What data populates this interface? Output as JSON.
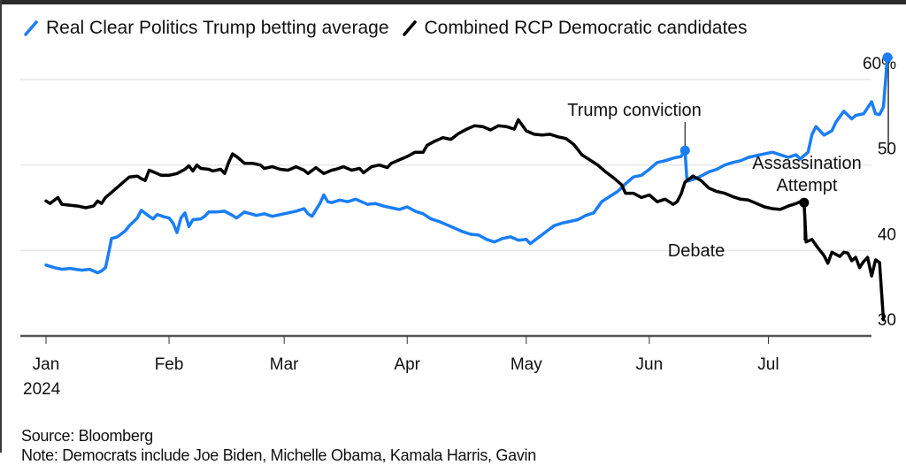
{
  "chart_data": {
    "type": "line",
    "title": "",
    "xlabel": "",
    "ylabel": "",
    "y_unit_suffix": "%",
    "ylim": [
      30,
      60
    ],
    "y_ticks": [
      {
        "value": 60,
        "label": "60%"
      },
      {
        "value": 50,
        "label": "50"
      },
      {
        "value": 40,
        "label": "40"
      },
      {
        "value": 30,
        "label": "30"
      }
    ],
    "x_ticks": [
      {
        "day": 0,
        "label": "Jan",
        "sublabel": "2024"
      },
      {
        "day": 31,
        "label": "Feb"
      },
      {
        "day": 60,
        "label": "Mar"
      },
      {
        "day": 91,
        "label": "Apr"
      },
      {
        "day": 121,
        "label": "May"
      },
      {
        "day": 152,
        "label": "Jun"
      },
      {
        "day": 182,
        "label": "Jul"
      }
    ],
    "x_range_days": [
      -6,
      208
    ],
    "grid": true,
    "legend_position": "top-left",
    "series": [
      {
        "name": "Real Clear Politics Trump betting average",
        "color": "#1a7ef5",
        "points": [
          [
            0,
            38.3
          ],
          [
            2,
            38.0
          ],
          [
            4,
            37.8
          ],
          [
            6,
            37.9
          ],
          [
            9,
            37.7
          ],
          [
            11,
            37.8
          ],
          [
            13,
            37.4
          ],
          [
            14,
            37.6
          ],
          [
            15,
            38.0
          ],
          [
            16,
            40.2
          ],
          [
            16.5,
            41.4
          ],
          [
            18,
            41.6
          ],
          [
            20,
            42.3
          ],
          [
            21,
            42.9
          ],
          [
            23,
            43.8
          ],
          [
            24,
            44.7
          ],
          [
            26,
            44.0
          ],
          [
            27,
            43.7
          ],
          [
            28,
            44.2
          ],
          [
            30,
            43.9
          ],
          [
            31,
            43.8
          ],
          [
            32,
            43.2
          ],
          [
            33,
            42.1
          ],
          [
            34,
            43.8
          ],
          [
            35,
            44.4
          ],
          [
            36,
            42.8
          ],
          [
            37,
            43.6
          ],
          [
            39,
            43.7
          ],
          [
            40,
            44.0
          ],
          [
            41,
            44.5
          ],
          [
            43,
            44.5
          ],
          [
            45,
            44.6
          ],
          [
            47,
            44.1
          ],
          [
            48,
            43.8
          ],
          [
            50,
            44.5
          ],
          [
            53,
            44.1
          ],
          [
            55,
            44.3
          ],
          [
            57,
            44.0
          ],
          [
            60,
            44.3
          ],
          [
            63,
            44.6
          ],
          [
            65,
            44.9
          ],
          [
            66,
            44.3
          ],
          [
            67,
            44.0
          ],
          [
            69,
            45.5
          ],
          [
            70,
            46.5
          ],
          [
            71,
            45.7
          ],
          [
            72,
            45.6
          ],
          [
            74,
            45.9
          ],
          [
            76,
            45.7
          ],
          [
            78,
            46.0
          ],
          [
            80,
            45.6
          ],
          [
            81,
            45.4
          ],
          [
            83,
            45.5
          ],
          [
            85,
            45.2
          ],
          [
            87,
            45.0
          ],
          [
            89,
            44.8
          ],
          [
            91,
            45.1
          ],
          [
            93,
            44.6
          ],
          [
            95,
            44.3
          ],
          [
            97,
            43.7
          ],
          [
            99,
            43.4
          ],
          [
            101,
            43.0
          ],
          [
            103,
            42.6
          ],
          [
            105,
            42.2
          ],
          [
            107,
            41.9
          ],
          [
            109,
            41.8
          ],
          [
            111,
            41.3
          ],
          [
            113,
            41.0
          ],
          [
            115,
            41.4
          ],
          [
            117,
            41.6
          ],
          [
            119,
            41.2
          ],
          [
            121,
            41.3
          ],
          [
            122,
            40.8
          ],
          [
            124,
            41.5
          ],
          [
            126,
            42.2
          ],
          [
            128,
            42.9
          ],
          [
            130,
            43.2
          ],
          [
            132,
            43.4
          ],
          [
            134,
            43.6
          ],
          [
            136,
            44.1
          ],
          [
            138,
            44.4
          ],
          [
            140,
            45.7
          ],
          [
            142,
            46.3
          ],
          [
            144,
            46.9
          ],
          [
            146,
            47.8
          ],
          [
            148,
            48.6
          ],
          [
            150,
            48.8
          ],
          [
            152,
            49.5
          ],
          [
            154,
            50.3
          ],
          [
            156,
            50.5
          ],
          [
            158,
            50.8
          ],
          [
            160,
            51.0
          ],
          [
            161,
            51.7
          ],
          [
            161.5,
            48.1
          ],
          [
            163,
            48.3
          ],
          [
            165,
            48.7
          ],
          [
            167,
            49.2
          ],
          [
            169,
            49.5
          ],
          [
            171,
            50.0
          ],
          [
            173,
            50.3
          ],
          [
            175,
            50.5
          ],
          [
            177,
            50.9
          ],
          [
            179,
            51.1
          ],
          [
            181,
            51.3
          ],
          [
            183,
            51.5
          ],
          [
            185,
            51.2
          ],
          [
            187,
            50.9
          ],
          [
            189,
            51.2
          ],
          [
            190,
            50.7
          ],
          [
            192,
            51.5
          ],
          [
            193,
            53.6
          ],
          [
            194,
            54.5
          ],
          [
            196,
            53.5
          ],
          [
            198,
            54.0
          ],
          [
            199,
            55.0
          ],
          [
            201,
            56.3
          ],
          [
            203,
            55.4
          ],
          [
            204,
            55.8
          ],
          [
            206,
            56.0
          ],
          [
            208,
            57.4
          ],
          [
            209,
            56.0
          ],
          [
            210,
            55.9
          ],
          [
            211,
            56.8
          ],
          [
            212,
            62.6
          ]
        ]
      },
      {
        "name": "Combined RCP Democratic candidates",
        "color": "#000000",
        "points": [
          [
            0,
            45.8
          ],
          [
            1,
            45.5
          ],
          [
            3,
            46.2
          ],
          [
            4,
            45.4
          ],
          [
            6,
            45.3
          ],
          [
            8,
            45.2
          ],
          [
            10,
            45.0
          ],
          [
            12,
            45.2
          ],
          [
            13,
            45.8
          ],
          [
            14,
            45.5
          ],
          [
            15,
            46.2
          ],
          [
            17,
            47.0
          ],
          [
            19,
            47.8
          ],
          [
            21,
            48.6
          ],
          [
            23,
            48.7
          ],
          [
            24,
            48.4
          ],
          [
            25,
            48.2
          ],
          [
            26,
            49.4
          ],
          [
            28,
            49.0
          ],
          [
            29,
            48.8
          ],
          [
            31,
            48.8
          ],
          [
            33,
            49.0
          ],
          [
            35,
            49.5
          ],
          [
            36,
            49.9
          ],
          [
            37,
            49.3
          ],
          [
            38,
            50.0
          ],
          [
            39,
            49.6
          ],
          [
            41,
            49.5
          ],
          [
            42,
            49.3
          ],
          [
            44,
            49.5
          ],
          [
            45,
            49.0
          ],
          [
            46,
            50.3
          ],
          [
            47,
            51.3
          ],
          [
            48,
            51.0
          ],
          [
            50,
            50.2
          ],
          [
            52,
            50.2
          ],
          [
            54,
            50.0
          ],
          [
            55,
            49.6
          ],
          [
            57,
            49.8
          ],
          [
            59,
            49.5
          ],
          [
            61,
            49.4
          ],
          [
            63,
            49.8
          ],
          [
            65,
            49.4
          ],
          [
            66,
            49.0
          ],
          [
            68,
            49.7
          ],
          [
            70,
            49.0
          ],
          [
            72,
            49.4
          ],
          [
            73,
            49.5
          ],
          [
            75,
            49.8
          ],
          [
            77,
            49.4
          ],
          [
            79,
            49.6
          ],
          [
            80,
            49.1
          ],
          [
            82,
            49.8
          ],
          [
            84,
            50.0
          ],
          [
            86,
            49.7
          ],
          [
            87,
            50.2
          ],
          [
            89,
            50.6
          ],
          [
            91,
            51.0
          ],
          [
            93,
            51.5
          ],
          [
            95,
            51.5
          ],
          [
            96,
            52.3
          ],
          [
            98,
            52.8
          ],
          [
            100,
            53.2
          ],
          [
            102,
            53.0
          ],
          [
            104,
            53.7
          ],
          [
            106,
            54.2
          ],
          [
            108,
            54.6
          ],
          [
            110,
            54.5
          ],
          [
            112,
            54.1
          ],
          [
            114,
            54.6
          ],
          [
            116,
            54.5
          ],
          [
            118,
            54.2
          ],
          [
            119,
            55.3
          ],
          [
            121,
            54.0
          ],
          [
            123,
            53.6
          ],
          [
            125,
            53.5
          ],
          [
            127,
            53.6
          ],
          [
            129,
            53.3
          ],
          [
            131,
            53.1
          ],
          [
            133,
            52.4
          ],
          [
            135,
            51.2
          ],
          [
            137,
            50.6
          ],
          [
            139,
            50.0
          ],
          [
            141,
            49.2
          ],
          [
            143,
            48.5
          ],
          [
            145,
            47.7
          ],
          [
            146,
            46.7
          ],
          [
            148,
            46.7
          ],
          [
            150,
            46.2
          ],
          [
            152,
            46.5
          ],
          [
            154,
            45.7
          ],
          [
            156,
            46.0
          ],
          [
            158,
            45.4
          ],
          [
            159,
            45.7
          ],
          [
            160,
            46.6
          ],
          [
            161,
            48.0
          ],
          [
            163,
            48.7
          ],
          [
            165,
            48.2
          ],
          [
            167,
            47.3
          ],
          [
            169,
            46.9
          ],
          [
            171,
            46.7
          ],
          [
            173,
            46.3
          ],
          [
            175,
            46.0
          ],
          [
            177,
            45.9
          ],
          [
            179,
            45.5
          ],
          [
            181,
            45.1
          ],
          [
            183,
            44.9
          ],
          [
            185,
            44.8
          ],
          [
            187,
            45.2
          ],
          [
            189,
            45.5
          ],
          [
            190,
            45.7
          ],
          [
            191,
            45.6
          ],
          [
            191.5,
            41.0
          ],
          [
            193,
            41.3
          ],
          [
            194,
            40.6
          ],
          [
            196,
            39.4
          ],
          [
            197,
            38.5
          ],
          [
            198,
            39.8
          ],
          [
            200,
            39.3
          ],
          [
            201,
            39.8
          ],
          [
            202,
            39.7
          ],
          [
            203,
            38.8
          ],
          [
            204,
            39.2
          ],
          [
            205,
            38.0
          ],
          [
            206,
            38.7
          ],
          [
            207,
            39.2
          ],
          [
            208,
            37.0
          ],
          [
            209,
            38.9
          ],
          [
            210,
            38.6
          ],
          [
            211,
            31.9
          ]
        ]
      }
    ],
    "annotations": [
      {
        "text": "Trump conviction",
        "series": 0,
        "day": 161
      },
      {
        "text": "Debate",
        "series": 1,
        "day": 191
      },
      {
        "text": "Assassination Attempt",
        "lines": [
          "Assassination",
          "Attempt"
        ],
        "series": 0,
        "day": 212
      }
    ]
  },
  "legend": {
    "items": [
      {
        "label": "Real Clear Politics Trump betting average",
        "color": "#1a7ef5"
      },
      {
        "label": "Combined RCP Democratic candidates",
        "color": "#000000"
      }
    ]
  },
  "footer": {
    "source": "Source: Bloomberg",
    "note": "Note: Democrats include Joe Biden, Michelle Obama, Kamala Harris, Gavin"
  }
}
